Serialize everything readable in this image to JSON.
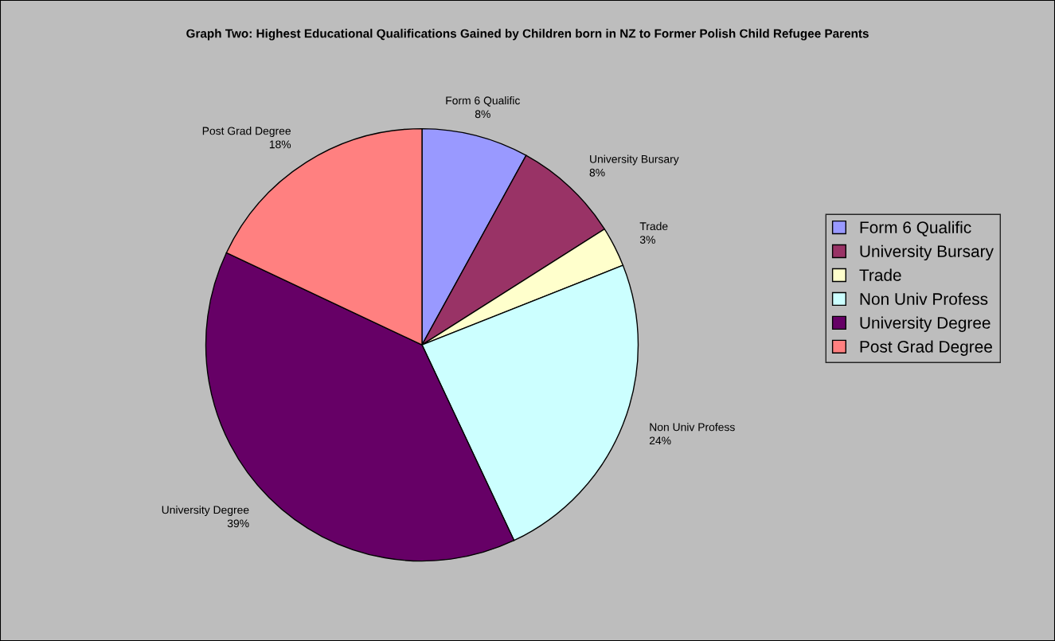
{
  "chart_data": {
    "type": "pie",
    "title": "Graph Two: Highest Educational Qualifications Gained by Children born in NZ to Former Polish Child Refugee Parents",
    "categories": [
      "Form 6 Qualific",
      "University Bursary",
      "Trade",
      "Non Univ Profess",
      "University Degree",
      "Post Grad Degree"
    ],
    "values": [
      8,
      8,
      3,
      24,
      39,
      18
    ],
    "value_labels": [
      "8%",
      "8%",
      "3%",
      "24%",
      "39%",
      "18%"
    ],
    "colors": [
      "#9999ff",
      "#993366",
      "#ffffcc",
      "#ccffff",
      "#660066",
      "#ff8080"
    ],
    "legend": "right"
  }
}
